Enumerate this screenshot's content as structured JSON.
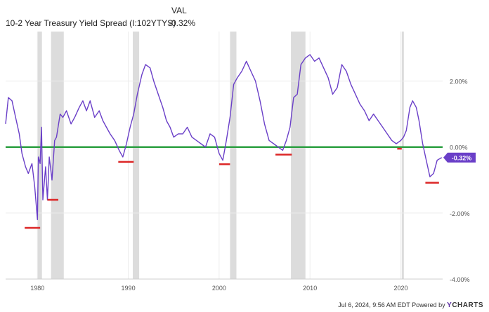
{
  "legend": {
    "header": "VAL",
    "series_name": "10-2 Year Treasury Yield Spread (I:102YTYS)",
    "series_value": "-0.32%"
  },
  "footer": {
    "timestamp": "Jul 6, 2024, 9:56 AM EDT Powered by",
    "brand_y": "Y",
    "brand_rest": "CHARTS"
  },
  "colors": {
    "series": "#6a3fc8",
    "zero_line": "#2ea043",
    "trough_marker": "#dc2626",
    "recession": "#dcdcdc",
    "grid": "#ececec",
    "value_badge": "#6a3fc8"
  },
  "chart_data": {
    "type": "line",
    "title": "",
    "xlabel": "",
    "ylabel": "",
    "x_ticks": [
      "1980",
      "1990",
      "2000",
      "2010",
      "2020"
    ],
    "y_ticks": [
      "2.00%",
      "0.00%",
      "-2.00%",
      "-4.00%"
    ],
    "xlim": [
      1976.5,
      2024.6
    ],
    "ylim": [
      -4.0,
      3.5
    ],
    "grid": true,
    "current_value_label": "-0.32%",
    "zero_reference_line": 0.0,
    "recessions": [
      [
        1980.0,
        1980.5
      ],
      [
        1981.5,
        1982.9
      ],
      [
        1990.5,
        1991.2
      ],
      [
        2001.2,
        2001.9
      ],
      [
        2007.9,
        2009.5
      ],
      [
        2020.1,
        2020.3
      ]
    ],
    "inversion_troughs": [
      {
        "x_start": 1978.6,
        "x_end": 1980.3,
        "y": -2.45
      },
      {
        "x_start": 1981.1,
        "x_end": 1982.3,
        "y": -1.6
      },
      {
        "x_start": 1988.9,
        "x_end": 1990.6,
        "y": -0.45
      },
      {
        "x_start": 2000.0,
        "x_end": 2001.2,
        "y": -0.52
      },
      {
        "x_start": 2006.2,
        "x_end": 2008.0,
        "y": -0.23
      },
      {
        "x_start": 2019.6,
        "x_end": 2020.1,
        "y": -0.05
      },
      {
        "x_start": 2022.7,
        "x_end": 2024.2,
        "y": -1.08
      }
    ],
    "series": [
      {
        "name": "10-2 Year Treasury Yield Spread (I:102YTYS)",
        "x": [
          1976.5,
          1976.8,
          1977.2,
          1977.6,
          1978.0,
          1978.3,
          1978.7,
          1979.0,
          1979.4,
          1979.7,
          1980.0,
          1980.1,
          1980.3,
          1980.45,
          1980.6,
          1980.9,
          1981.1,
          1981.3,
          1981.6,
          1981.9,
          1982.1,
          1982.5,
          1982.8,
          1983.2,
          1983.7,
          1984.1,
          1984.6,
          1985.0,
          1985.4,
          1985.8,
          1986.3,
          1986.8,
          1987.2,
          1987.6,
          1988.0,
          1988.5,
          1989.0,
          1989.4,
          1989.8,
          1990.2,
          1990.6,
          1991.0,
          1991.5,
          1991.9,
          1992.4,
          1992.8,
          1993.3,
          1993.8,
          1994.2,
          1994.6,
          1995.0,
          1995.5,
          1996.0,
          1996.5,
          1997.0,
          1997.5,
          1998.0,
          1998.5,
          1999.0,
          1999.5,
          2000.0,
          2000.4,
          2000.8,
          2001.2,
          2001.6,
          2002.0,
          2002.5,
          2003.0,
          2003.5,
          2004.0,
          2004.5,
          2005.0,
          2005.5,
          2006.0,
          2006.5,
          2007.0,
          2007.4,
          2007.8,
          2008.2,
          2008.6,
          2009.0,
          2009.5,
          2010.0,
          2010.5,
          2011.0,
          2011.5,
          2012.0,
          2012.5,
          2013.0,
          2013.5,
          2014.0,
          2014.5,
          2015.0,
          2015.5,
          2016.0,
          2016.5,
          2017.0,
          2017.5,
          2018.0,
          2018.5,
          2019.0,
          2019.5,
          2020.0,
          2020.3,
          2020.6,
          2021.0,
          2021.3,
          2021.7,
          2022.0,
          2022.4,
          2022.8,
          2023.2,
          2023.6,
          2024.0,
          2024.3,
          2024.5
        ],
        "values": [
          0.7,
          1.5,
          1.4,
          0.9,
          0.4,
          -0.2,
          -0.6,
          -0.8,
          -0.5,
          -1.2,
          -2.2,
          -0.3,
          -0.5,
          0.6,
          -1.6,
          -0.6,
          -1.6,
          -0.3,
          -1.0,
          0.2,
          0.3,
          1.0,
          0.9,
          1.1,
          0.7,
          0.9,
          1.2,
          1.4,
          1.1,
          1.4,
          0.9,
          1.1,
          0.8,
          0.6,
          0.4,
          0.2,
          -0.1,
          -0.3,
          0.1,
          0.6,
          1.0,
          1.6,
          2.2,
          2.5,
          2.4,
          2.0,
          1.6,
          1.2,
          0.8,
          0.6,
          0.3,
          0.4,
          0.4,
          0.6,
          0.3,
          0.2,
          0.1,
          0.0,
          0.4,
          0.3,
          -0.2,
          -0.4,
          0.2,
          0.9,
          1.9,
          2.1,
          2.3,
          2.6,
          2.3,
          2.0,
          1.4,
          0.7,
          0.2,
          0.1,
          0.0,
          -0.1,
          0.2,
          0.6,
          1.5,
          1.6,
          2.5,
          2.7,
          2.8,
          2.6,
          2.7,
          2.4,
          2.1,
          1.6,
          1.8,
          2.5,
          2.3,
          1.9,
          1.6,
          1.3,
          1.1,
          0.8,
          1.0,
          0.8,
          0.6,
          0.4,
          0.2,
          0.1,
          0.2,
          0.3,
          0.5,
          1.2,
          1.4,
          1.2,
          0.8,
          0.1,
          -0.4,
          -0.9,
          -0.8,
          -0.4,
          -0.35,
          -0.32
        ]
      }
    ]
  }
}
